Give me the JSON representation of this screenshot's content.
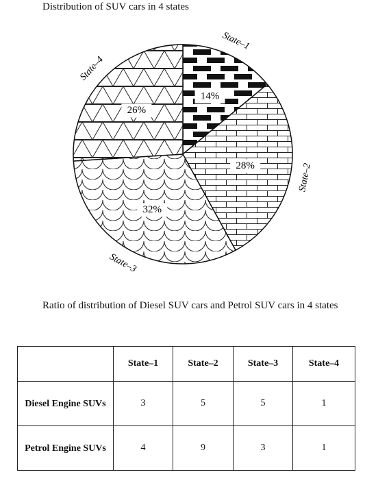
{
  "chart_data": {
    "type": "pie",
    "title": "Distribution of SUV cars in 4 states",
    "categories": [
      "State–1",
      "State–2",
      "State–3",
      "State–4"
    ],
    "values": [
      14,
      28,
      32,
      26
    ],
    "value_labels": [
      "14%",
      "28%",
      "32%",
      "26%"
    ]
  },
  "table": {
    "caption": "Ratio of distribution of Diesel SUV cars and Petrol SUV cars in 4 states",
    "header": [
      "State–1",
      "State–2",
      "State–3",
      "State–4"
    ],
    "rows": [
      [
        "Diesel Engine SUVs",
        "3",
        "5",
        "5",
        "1"
      ],
      [
        "Petrol Engine SUVs",
        "4",
        "9",
        "3",
        "1"
      ]
    ]
  }
}
